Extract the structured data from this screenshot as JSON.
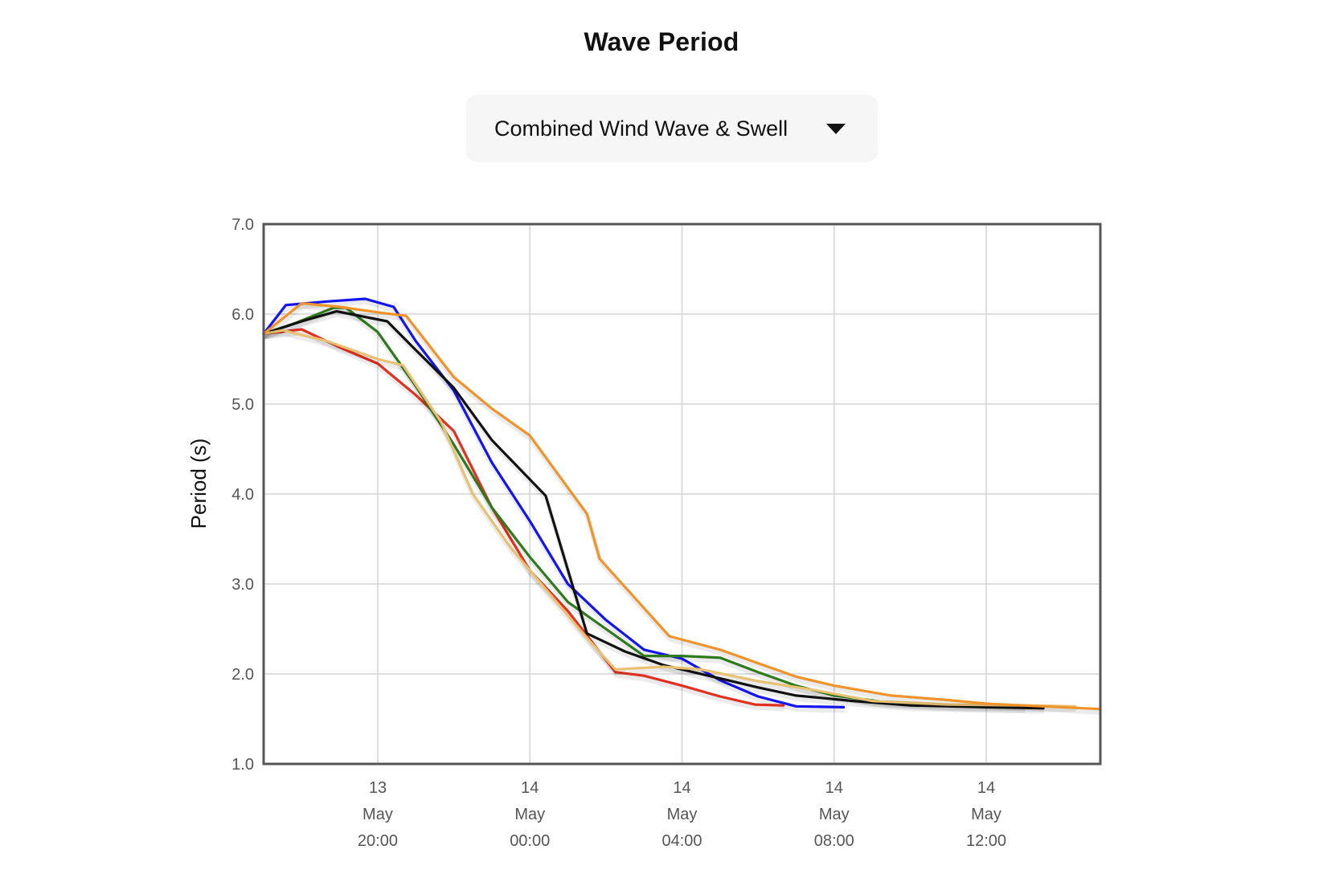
{
  "title": "Wave Period",
  "selector": {
    "selected": "Combined Wind Wave & Swell",
    "icon": "caret-down-icon"
  },
  "chart_data": {
    "type": "line",
    "title": "",
    "xlabel": "",
    "ylabel": "Period (s)",
    "ylim": [
      1.0,
      7.0
    ],
    "yticks": [
      "1.0",
      "2.0",
      "3.0",
      "4.0",
      "5.0",
      "6.0",
      "7.0"
    ],
    "xlim": [
      "2024-05-13T17:00",
      "2024-05-14T15:00"
    ],
    "xticks": [
      {
        "day": "13",
        "month": "May",
        "time": "20:00",
        "t": "2024-05-13T20:00"
      },
      {
        "day": "14",
        "month": "May",
        "time": "00:00",
        "t": "2024-05-14T00:00"
      },
      {
        "day": "14",
        "month": "May",
        "time": "04:00",
        "t": "2024-05-14T04:00"
      },
      {
        "day": "14",
        "month": "May",
        "time": "08:00",
        "t": "2024-05-14T08:00"
      },
      {
        "day": "14",
        "month": "May",
        "time": "12:00",
        "t": "2024-05-14T12:00"
      }
    ],
    "grid": true,
    "legend": "none",
    "series": [
      {
        "color": "#1414ee",
        "points": [
          [
            "2024-05-13T17:00",
            5.78
          ],
          [
            "2024-05-13T17:35",
            6.1
          ],
          [
            "2024-05-13T18:40",
            6.14
          ],
          [
            "2024-05-13T19:40",
            6.17
          ],
          [
            "2024-05-13T20:25",
            6.08
          ],
          [
            "2024-05-13T21:00",
            5.7
          ],
          [
            "2024-05-13T22:00",
            5.15
          ],
          [
            "2024-05-13T23:00",
            4.35
          ],
          [
            "2024-05-14T00:00",
            3.7
          ],
          [
            "2024-05-14T01:00",
            3.0
          ],
          [
            "2024-05-14T02:00",
            2.6
          ],
          [
            "2024-05-14T03:00",
            2.27
          ],
          [
            "2024-05-14T04:00",
            2.17
          ],
          [
            "2024-05-14T05:00",
            1.93
          ],
          [
            "2024-05-14T06:00",
            1.75
          ],
          [
            "2024-05-14T07:00",
            1.64
          ],
          [
            "2024-05-14T08:15",
            1.63
          ]
        ]
      },
      {
        "color": "#e23020",
        "points": [
          [
            "2024-05-13T17:00",
            5.78
          ],
          [
            "2024-05-13T18:00",
            5.83
          ],
          [
            "2024-05-13T19:00",
            5.63
          ],
          [
            "2024-05-13T20:00",
            5.45
          ],
          [
            "2024-05-13T21:00",
            5.1
          ],
          [
            "2024-05-13T22:00",
            4.7
          ],
          [
            "2024-05-13T23:00",
            3.85
          ],
          [
            "2024-05-14T00:00",
            3.15
          ],
          [
            "2024-05-14T01:00",
            2.7
          ],
          [
            "2024-05-14T02:15",
            2.02
          ],
          [
            "2024-05-14T03:00",
            1.98
          ],
          [
            "2024-05-14T04:00",
            1.87
          ],
          [
            "2024-05-14T05:00",
            1.75
          ],
          [
            "2024-05-14T05:55",
            1.66
          ],
          [
            "2024-05-14T06:40",
            1.65
          ]
        ]
      },
      {
        "color": "#2e7a1c",
        "points": [
          [
            "2024-05-13T17:00",
            5.78
          ],
          [
            "2024-05-13T17:50",
            5.9
          ],
          [
            "2024-05-13T18:50",
            6.07
          ],
          [
            "2024-05-13T19:10",
            6.07
          ],
          [
            "2024-05-13T20:00",
            5.8
          ],
          [
            "2024-05-13T21:00",
            5.2
          ],
          [
            "2024-05-13T22:00",
            4.55
          ],
          [
            "2024-05-13T23:00",
            3.85
          ],
          [
            "2024-05-14T00:00",
            3.3
          ],
          [
            "2024-05-14T01:00",
            2.8
          ],
          [
            "2024-05-14T02:00",
            2.5
          ],
          [
            "2024-05-14T03:00",
            2.2
          ],
          [
            "2024-05-14T04:00",
            2.2
          ],
          [
            "2024-05-14T05:00",
            2.18
          ],
          [
            "2024-05-14T06:00",
            2.02
          ],
          [
            "2024-05-14T07:00",
            1.87
          ],
          [
            "2024-05-14T08:00",
            1.76
          ],
          [
            "2024-05-14T09:30",
            1.68
          ],
          [
            "2024-05-14T11:00",
            1.65
          ],
          [
            "2024-05-14T13:00",
            1.63
          ]
        ]
      },
      {
        "color": "#111111",
        "points": [
          [
            "2024-05-13T17:00",
            5.78
          ],
          [
            "2024-05-13T18:00",
            5.92
          ],
          [
            "2024-05-13T18:55",
            6.03
          ],
          [
            "2024-05-13T20:15",
            5.92
          ],
          [
            "2024-05-13T21:00",
            5.6
          ],
          [
            "2024-05-13T22:00",
            5.18
          ],
          [
            "2024-05-13T23:00",
            4.6
          ],
          [
            "2024-05-14T00:25",
            3.98
          ],
          [
            "2024-05-14T01:30",
            2.45
          ],
          [
            "2024-05-14T02:30",
            2.25
          ],
          [
            "2024-05-14T03:30",
            2.1
          ],
          [
            "2024-05-14T05:00",
            1.95
          ],
          [
            "2024-05-14T06:00",
            1.85
          ],
          [
            "2024-05-14T07:00",
            1.76
          ],
          [
            "2024-05-14T08:30",
            1.7
          ],
          [
            "2024-05-14T10:00",
            1.65
          ],
          [
            "2024-05-14T12:00",
            1.63
          ],
          [
            "2024-05-14T13:30",
            1.62
          ]
        ]
      },
      {
        "color": "#e9c173",
        "points": [
          [
            "2024-05-13T17:00",
            5.78
          ],
          [
            "2024-05-13T17:30",
            5.82
          ],
          [
            "2024-05-13T18:40",
            5.7
          ],
          [
            "2024-05-13T20:00",
            5.5
          ],
          [
            "2024-05-13T20:40",
            5.43
          ],
          [
            "2024-05-13T21:40",
            4.8
          ],
          [
            "2024-05-13T22:30",
            4.0
          ],
          [
            "2024-05-13T23:30",
            3.4
          ],
          [
            "2024-05-14T00:30",
            2.9
          ],
          [
            "2024-05-14T01:30",
            2.4
          ],
          [
            "2024-05-14T02:15",
            2.05
          ],
          [
            "2024-05-14T03:30",
            2.08
          ],
          [
            "2024-05-14T04:30",
            2.05
          ],
          [
            "2024-05-14T06:00",
            1.92
          ],
          [
            "2024-05-14T07:30",
            1.82
          ],
          [
            "2024-05-14T09:00",
            1.7
          ],
          [
            "2024-05-14T11:00",
            1.66
          ],
          [
            "2024-05-14T13:00",
            1.65
          ],
          [
            "2024-05-14T14:20",
            1.64
          ]
        ]
      },
      {
        "color": "#f0932b",
        "points": [
          [
            "2024-05-13T17:00",
            5.78
          ],
          [
            "2024-05-13T18:00",
            6.12
          ],
          [
            "2024-05-13T19:00",
            6.08
          ],
          [
            "2024-05-13T20:00",
            6.02
          ],
          [
            "2024-05-13T20:45",
            5.98
          ],
          [
            "2024-05-13T22:00",
            5.3
          ],
          [
            "2024-05-13T23:00",
            4.95
          ],
          [
            "2024-05-14T00:00",
            4.65
          ],
          [
            "2024-05-14T01:30",
            3.78
          ],
          [
            "2024-05-14T01:50",
            3.28
          ],
          [
            "2024-05-14T03:40",
            2.42
          ],
          [
            "2024-05-14T05:00",
            2.27
          ],
          [
            "2024-05-14T06:00",
            2.12
          ],
          [
            "2024-05-14T07:00",
            1.97
          ],
          [
            "2024-05-14T08:00",
            1.87
          ],
          [
            "2024-05-14T09:30",
            1.76
          ],
          [
            "2024-05-14T11:00",
            1.71
          ],
          [
            "2024-05-14T12:00",
            1.67
          ],
          [
            "2024-05-14T13:30",
            1.64
          ],
          [
            "2024-05-14T15:00",
            1.61
          ]
        ]
      }
    ]
  }
}
